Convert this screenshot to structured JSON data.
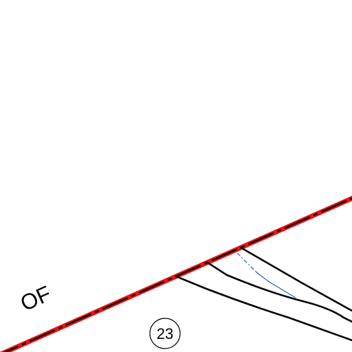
{
  "map": {
    "boundary_label": "OF",
    "parcel_number": "23"
  },
  "colors": {
    "background": "#ffffff",
    "boundary_casing": "#ee1111",
    "boundary_dash": "#000000",
    "road_line": "#000000",
    "stream_line": "#1f5fbf",
    "label_text": "#000000"
  }
}
